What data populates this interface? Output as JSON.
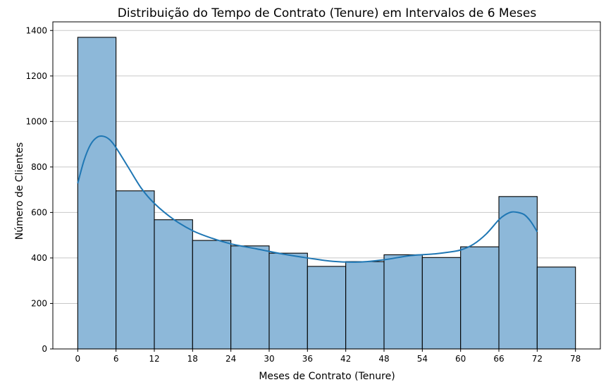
{
  "chart_data": {
    "type": "bar",
    "title": "Distribuição do Tempo de Contrato (Tenure) em Intervalos de 6 Meses",
    "xlabel": "Meses de Contrato (Tenure)",
    "ylabel": "Número de Clientes",
    "bin_edges": [
      0,
      6,
      12,
      18,
      24,
      30,
      36,
      42,
      48,
      54,
      60,
      66,
      72,
      78
    ],
    "values": [
      1370,
      695,
      568,
      477,
      453,
      421,
      363,
      384,
      414,
      402,
      449,
      670,
      360
    ],
    "xticks": [
      0,
      6,
      12,
      18,
      24,
      30,
      36,
      42,
      48,
      54,
      60,
      66,
      72,
      78
    ],
    "yticks": [
      0,
      200,
      400,
      600,
      800,
      1000,
      1200,
      1400
    ],
    "xlim": [
      -3.9,
      81.9
    ],
    "ylim": [
      0,
      1438
    ],
    "grid": "y-major",
    "legend": "none",
    "kde": {
      "x": [
        0,
        1,
        2,
        3,
        4,
        5,
        6,
        8,
        10,
        12,
        15,
        18,
        21,
        24,
        28,
        32,
        36,
        40,
        44,
        48,
        52,
        56,
        58,
        60,
        62,
        64,
        66,
        67,
        68,
        69,
        70,
        71,
        72
      ],
      "y": [
        728,
        830,
        898,
        930,
        935,
        920,
        885,
        795,
        705,
        640,
        570,
        520,
        487,
        462,
        440,
        418,
        400,
        385,
        382,
        392,
        410,
        418,
        425,
        435,
        460,
        505,
        568,
        590,
        602,
        600,
        590,
        560,
        515
      ]
    },
    "colors": {
      "bar": "#8db8d9",
      "edge": "#000000",
      "kde": "#1f77b4",
      "grid": "#c8c8c8"
    }
  }
}
